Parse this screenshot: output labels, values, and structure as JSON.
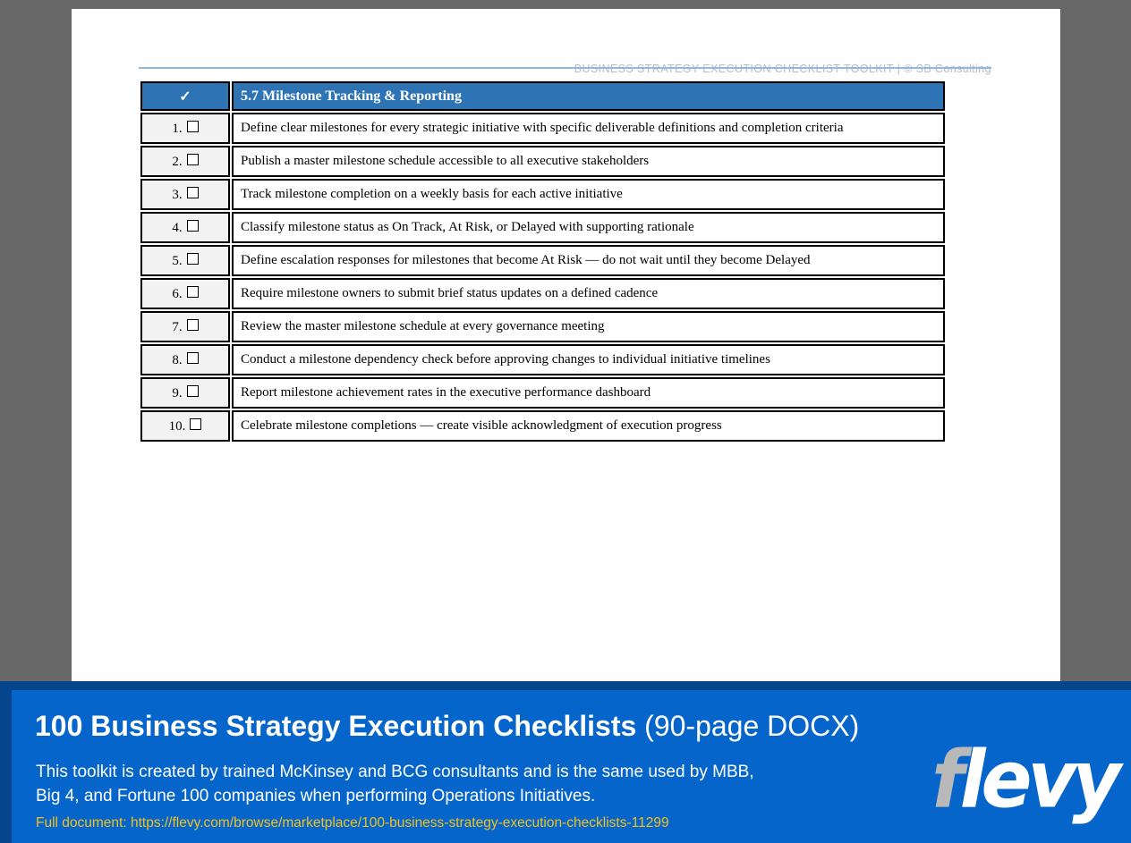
{
  "doc": {
    "header_text": "BUSINESS STRATEGY EXECUTION CHECKLIST TOOLKIT | © SB Consulting",
    "table": {
      "header": {
        "check_symbol": "✓",
        "title": "5.7 Milestone Tracking & Reporting"
      },
      "rows": [
        {
          "num": "1.",
          "text": "Define clear milestones for every strategic initiative with specific deliverable definitions and completion criteria"
        },
        {
          "num": "2.",
          "text": "Publish a master milestone schedule accessible to all executive stakeholders"
        },
        {
          "num": "3.",
          "text": "Track milestone completion on a weekly basis for each active initiative"
        },
        {
          "num": "4.",
          "text": "Classify milestone status as On Track, At Risk, or Delayed with supporting rationale"
        },
        {
          "num": "5.",
          "text": "Define escalation responses for milestones that become At Risk — do not wait until they become Delayed"
        },
        {
          "num": "6.",
          "text": "Require milestone owners to submit brief status updates on a defined cadence"
        },
        {
          "num": "7.",
          "text": "Review the master milestone schedule at every governance meeting"
        },
        {
          "num": "8.",
          "text": "Conduct a milestone dependency check before approving changes to individual initiative timelines"
        },
        {
          "num": "9.",
          "text": "Report milestone achievement rates in the executive performance dashboard"
        },
        {
          "num": "10.",
          "text": "Celebrate milestone completions — create visible acknowledgment of execution progress"
        }
      ]
    }
  },
  "banner": {
    "title_bold": "100 Business Strategy Execution Checklists",
    "title_regular": " (90-page DOCX)",
    "description_line1": "This toolkit is created by trained McKinsey and BCG consultants and is the same used by MBB,",
    "description_line2": "Big 4, and Fortune 100 companies when performing Operations Initiatives.",
    "link_text": "Full document: https://flevy.com/browse/marketplace/100-business-strategy-execution-checklists-11299",
    "logo_first_letter": "f",
    "logo_rest": "levy"
  },
  "colors": {
    "table_header_blue": "#2e74b5",
    "banner_blue": "#0665cb",
    "banner_border_navy": "#05458c",
    "link_yellow": "#f2c21d",
    "header_rule_blue": "#8fb9de",
    "page_background_gray": "#676767",
    "check_col_gray": "#f2f2f2"
  }
}
